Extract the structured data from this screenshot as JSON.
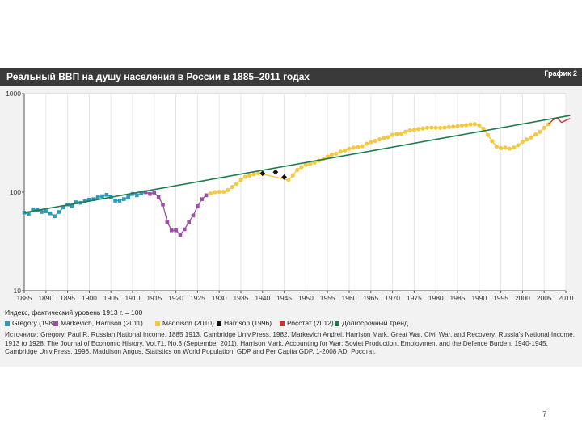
{
  "chart_data": {
    "type": "line",
    "title": "Реальный ВВП на душу населения в России в 1885–2011 годах",
    "graph_label": "График 2",
    "yscale": "log",
    "ylim": [
      10,
      1000
    ],
    "yticks": [
      10,
      100,
      1000
    ],
    "xlim": [
      1885,
      2010
    ],
    "xticks": [
      1885,
      1890,
      1895,
      1900,
      1905,
      1910,
      1915,
      1920,
      1925,
      1930,
      1935,
      1940,
      1945,
      1950,
      1955,
      1960,
      1965,
      1970,
      1975,
      1980,
      1985,
      1990,
      1995,
      2000,
      2005,
      2010
    ],
    "ylabel": "Индекс, фактический уровень 1913 г. = 100",
    "series": [
      {
        "name": "Gregory (1982)",
        "color": "#2a9ab8",
        "marker": "square",
        "x": [
          1885,
          1886,
          1887,
          1888,
          1889,
          1890,
          1891,
          1892,
          1893,
          1894,
          1895,
          1896,
          1897,
          1898,
          1899,
          1900,
          1901,
          1902,
          1903,
          1904,
          1905,
          1906,
          1907,
          1908,
          1909,
          1910,
          1911,
          1912,
          1913
        ],
        "y": [
          62,
          60,
          67,
          66,
          63,
          64,
          61,
          57,
          63,
          70,
          75,
          72,
          79,
          78,
          81,
          84,
          85,
          89,
          91,
          94,
          89,
          82,
          82,
          85,
          89,
          96,
          93,
          97,
          100
        ]
      },
      {
        "name": "Markevich, Harrison (2011)",
        "color": "#9b4fa5",
        "marker": "square",
        "x": [
          1913,
          1914,
          1915,
          1916,
          1917,
          1918,
          1919,
          1920,
          1921,
          1922,
          1923,
          1924,
          1925,
          1926,
          1927
        ],
        "y": [
          100,
          96,
          99,
          89,
          75,
          50,
          41,
          41,
          37,
          42,
          50,
          58,
          72,
          85,
          93
        ]
      },
      {
        "name": "Maddison (2010)",
        "color": "#f5c842",
        "marker": "circle",
        "x": [
          1928,
          1929,
          1930,
          1931,
          1932,
          1933,
          1934,
          1935,
          1936,
          1937,
          1938,
          1939,
          1946,
          1947,
          1948,
          1949,
          1950,
          1951,
          1952,
          1953,
          1954,
          1955,
          1956,
          1957,
          1958,
          1959,
          1960,
          1961,
          1962,
          1963,
          1964,
          1965,
          1966,
          1967,
          1968,
          1969,
          1970,
          1971,
          1972,
          1973,
          1974,
          1975,
          1976,
          1977,
          1978,
          1979,
          1980,
          1981,
          1982,
          1983,
          1984,
          1985,
          1986,
          1987,
          1988,
          1989,
          1990,
          1991,
          1992,
          1993,
          1994,
          1995,
          1996,
          1997,
          1998,
          1999,
          2000,
          2001,
          2002,
          2003,
          2004,
          2005,
          2006
        ],
        "y": [
          97,
          100,
          101,
          101,
          105,
          113,
          122,
          133,
          143,
          147,
          152,
          156,
          133,
          148,
          168,
          180,
          190,
          193,
          200,
          209,
          216,
          229,
          241,
          246,
          258,
          265,
          276,
          283,
          287,
          293,
          310,
          322,
          332,
          344,
          355,
          362,
          382,
          390,
          392,
          410,
          423,
          428,
          438,
          443,
          450,
          452,
          450,
          449,
          452,
          459,
          463,
          467,
          476,
          479,
          488,
          491,
          477,
          440,
          380,
          330,
          290,
          280,
          283,
          276,
          284,
          300,
          325,
          342,
          360,
          385,
          410,
          450,
          490
        ]
      },
      {
        "name": "Harrison (1996)",
        "color": "#111111",
        "marker": "diamond",
        "x": [
          1940,
          1943,
          1945
        ],
        "y": [
          155,
          160,
          142
        ]
      },
      {
        "name": "Росстат (2012)",
        "color": "#d32f2f",
        "marker": "none",
        "x": [
          2006,
          2007,
          2008,
          2009,
          2010,
          2011
        ],
        "y": [
          490,
          540,
          570,
          510,
          535,
          560
        ]
      },
      {
        "name": "Долгосрочный тренд",
        "color": "#1f7a4c",
        "marker": "none",
        "x": [
          1885,
          2011
        ],
        "y": [
          62,
          600
        ]
      }
    ]
  },
  "sources_text": "Источники: Gregory, Paul R. Russian National Income, 1885 1913. Cambridge Univ.Press, 1982. Markevich Andrei, Harrison Mark. Great War, Civil War, and Recovery: Russia's National Income, 1913 to 1928. The Journal of Economic History, Vol.71, No.3 (September 2011). Harrison Mark. Accounting for War: Soviet Production, Employment and the Defence Burden, 1940-1945. Cambridge Univ.Press, 1996. Maddison Angus. Statistics on World Population, GDP and Per Capita GDP, 1-2008 AD. Росстат.",
  "page_number": "7"
}
